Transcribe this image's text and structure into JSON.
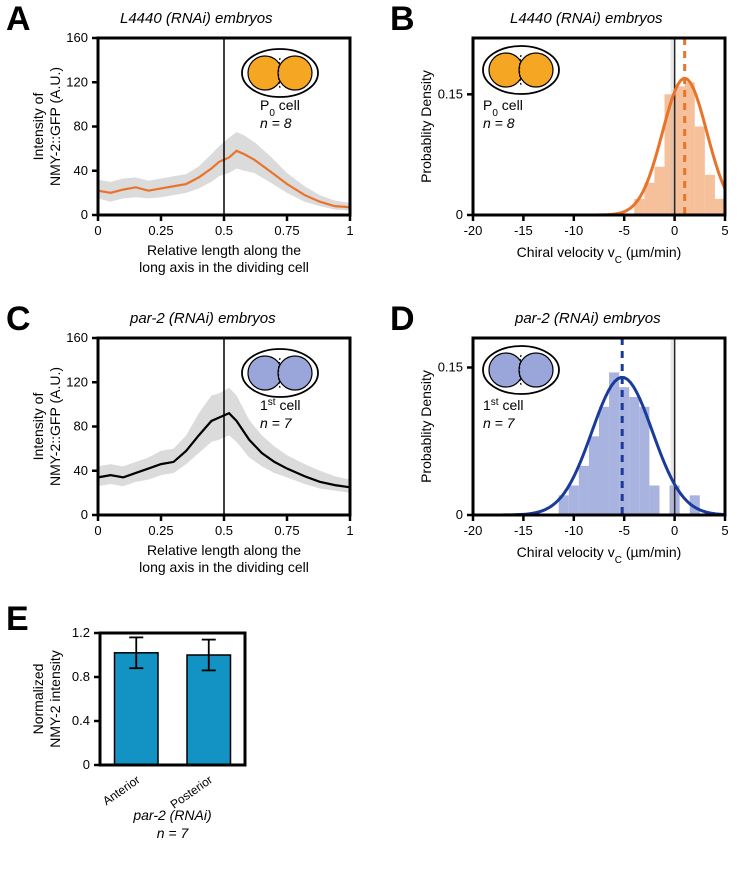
{
  "panelA": {
    "letter": "A",
    "title": "L4440 (RNAi) embryos",
    "ylabel_line1": "Intensity of",
    "ylabel_line2": "NMY-2::GFP (A.U.)",
    "xlabel_line1": "Relative length along the",
    "xlabel_line2": "long axis in the dividing cell",
    "xlim": [
      0,
      1
    ],
    "ylim": [
      0,
      160
    ],
    "xticks": [
      0,
      0.25,
      0.5,
      0.75,
      1
    ],
    "yticks": [
      0,
      40,
      80,
      120,
      160
    ],
    "vline_x": 0.5,
    "line_color": "#e8742c",
    "band_color": "#c8c8c8",
    "series": [
      {
        "x": 0.0,
        "y": 22,
        "lo": 15,
        "hi": 32
      },
      {
        "x": 0.05,
        "y": 20,
        "lo": 12,
        "hi": 30
      },
      {
        "x": 0.1,
        "y": 23,
        "lo": 15,
        "hi": 33
      },
      {
        "x": 0.15,
        "y": 25,
        "lo": 16,
        "hi": 34
      },
      {
        "x": 0.2,
        "y": 22,
        "lo": 15,
        "hi": 31
      },
      {
        "x": 0.25,
        "y": 24,
        "lo": 16,
        "hi": 33
      },
      {
        "x": 0.3,
        "y": 26,
        "lo": 18,
        "hi": 35
      },
      {
        "x": 0.35,
        "y": 28,
        "lo": 20,
        "hi": 37
      },
      {
        "x": 0.4,
        "y": 34,
        "lo": 24,
        "hi": 44
      },
      {
        "x": 0.45,
        "y": 42,
        "lo": 30,
        "hi": 55
      },
      {
        "x": 0.48,
        "y": 48,
        "lo": 35,
        "hi": 62
      },
      {
        "x": 0.52,
        "y": 52,
        "lo": 38,
        "hi": 70
      },
      {
        "x": 0.55,
        "y": 58,
        "lo": 42,
        "hi": 75
      },
      {
        "x": 0.58,
        "y": 55,
        "lo": 40,
        "hi": 72
      },
      {
        "x": 0.62,
        "y": 50,
        "lo": 38,
        "hi": 66
      },
      {
        "x": 0.68,
        "y": 40,
        "lo": 30,
        "hi": 54
      },
      {
        "x": 0.75,
        "y": 28,
        "lo": 20,
        "hi": 38
      },
      {
        "x": 0.82,
        "y": 18,
        "lo": 12,
        "hi": 26
      },
      {
        "x": 0.88,
        "y": 12,
        "lo": 8,
        "hi": 18
      },
      {
        "x": 0.94,
        "y": 8,
        "lo": 5,
        "hi": 13
      },
      {
        "x": 1.0,
        "y": 7,
        "lo": 4,
        "hi": 11
      }
    ],
    "inset_label_line1": "P",
    "inset_label_sub": "0",
    "inset_label_line2": " cell",
    "inset_n": "n = 8",
    "inset_cell_color": "#f5a623"
  },
  "panelB": {
    "letter": "B",
    "title": "L4440 (RNAi) embryos",
    "ylabel": "Probablity Density",
    "xlabel_pre": "Chiral velocity  v",
    "xlabel_sub": "C",
    "xlabel_unit": "(µm/min)",
    "xlim": [
      -20,
      5
    ],
    "ylim": [
      0,
      0.22
    ],
    "xticks": [
      -20,
      -15,
      -10,
      -5,
      0,
      5
    ],
    "yticks": [
      0,
      0.15
    ],
    "vline_x": 0,
    "hist_color": "#f4b58a",
    "curve_color": "#e8742c",
    "dash_color": "#e8742c",
    "grey_dash": "#c0c0c0",
    "hist": [
      {
        "x": -3.5,
        "w": 1,
        "h": 0.02
      },
      {
        "x": -2.5,
        "w": 1,
        "h": 0.04
      },
      {
        "x": -1.5,
        "w": 1,
        "h": 0.06
      },
      {
        "x": -0.5,
        "w": 1,
        "h": 0.15
      },
      {
        "x": 0.5,
        "w": 1,
        "h": 0.16
      },
      {
        "x": 1.5,
        "w": 1,
        "h": 0.165
      },
      {
        "x": 2.5,
        "w": 1,
        "h": 0.11
      },
      {
        "x": 3.5,
        "w": 1,
        "h": 0.05
      },
      {
        "x": 4.5,
        "w": 1,
        "h": 0.02
      }
    ],
    "mean": 1.0,
    "sd": 2.2,
    "peak": 0.17,
    "inset_label_line1": "P",
    "inset_label_sub": "0",
    "inset_label_line2": " cell",
    "inset_n": "n = 8",
    "inset_cell_color": "#f5a623"
  },
  "panelC": {
    "letter": "C",
    "title": "par-2 (RNAi) embryos",
    "ylabel_line1": "Intensity of",
    "ylabel_line2": "NMY-2::GFP (A.U.)",
    "xlabel_line1": "Relative length along the",
    "xlabel_line2": "long axis in the dividing cell",
    "xlim": [
      0,
      1
    ],
    "ylim": [
      0,
      160
    ],
    "xticks": [
      0,
      0.25,
      0.5,
      0.75,
      1
    ],
    "yticks": [
      0,
      40,
      80,
      120,
      160
    ],
    "vline_x": 0.5,
    "line_color": "#000000",
    "band_color": "#c8c8c8",
    "series": [
      {
        "x": 0.0,
        "y": 34,
        "lo": 26,
        "hi": 44
      },
      {
        "x": 0.05,
        "y": 36,
        "lo": 28,
        "hi": 46
      },
      {
        "x": 0.1,
        "y": 34,
        "lo": 26,
        "hi": 44
      },
      {
        "x": 0.15,
        "y": 38,
        "lo": 30,
        "hi": 48
      },
      {
        "x": 0.2,
        "y": 42,
        "lo": 32,
        "hi": 52
      },
      {
        "x": 0.25,
        "y": 46,
        "lo": 36,
        "hi": 58
      },
      {
        "x": 0.3,
        "y": 48,
        "lo": 38,
        "hi": 60
      },
      {
        "x": 0.35,
        "y": 58,
        "lo": 46,
        "hi": 72
      },
      {
        "x": 0.4,
        "y": 72,
        "lo": 56,
        "hi": 92
      },
      {
        "x": 0.45,
        "y": 85,
        "lo": 66,
        "hi": 108
      },
      {
        "x": 0.48,
        "y": 88,
        "lo": 68,
        "hi": 110
      },
      {
        "x": 0.52,
        "y": 92,
        "lo": 72,
        "hi": 115
      },
      {
        "x": 0.55,
        "y": 85,
        "lo": 66,
        "hi": 108
      },
      {
        "x": 0.6,
        "y": 68,
        "lo": 52,
        "hi": 86
      },
      {
        "x": 0.65,
        "y": 56,
        "lo": 44,
        "hi": 72
      },
      {
        "x": 0.7,
        "y": 48,
        "lo": 38,
        "hi": 62
      },
      {
        "x": 0.75,
        "y": 42,
        "lo": 34,
        "hi": 54
      },
      {
        "x": 0.82,
        "y": 35,
        "lo": 28,
        "hi": 46
      },
      {
        "x": 0.88,
        "y": 30,
        "lo": 24,
        "hi": 40
      },
      {
        "x": 0.94,
        "y": 27,
        "lo": 22,
        "hi": 35
      },
      {
        "x": 1.0,
        "y": 25,
        "lo": 20,
        "hi": 32
      }
    ],
    "inset_label_line1": "1",
    "inset_label_sup": "st",
    "inset_label_line2": " cell",
    "inset_n": "n = 7",
    "inset_cell_color": "#9aa6d9"
  },
  "panelD": {
    "letter": "D",
    "title": "par-2 (RNAi) embryos",
    "ylabel": "Probablity Density",
    "xlabel_pre": "Chiral velocity  v",
    "xlabel_sub": "C",
    "xlabel_unit": "(µm/min)",
    "xlim": [
      -20,
      5
    ],
    "ylim": [
      0,
      0.18
    ],
    "xticks": [
      -20,
      -15,
      -10,
      -5,
      0,
      5
    ],
    "yticks": [
      0,
      0.15
    ],
    "vline_x": 0,
    "hist_color": "#9aa6d9",
    "curve_color": "#1b3b9b",
    "dash_color": "#1b3b9b",
    "grey_dash": "#c0c0c0",
    "hist": [
      {
        "x": -11,
        "w": 1,
        "h": 0.02
      },
      {
        "x": -10,
        "w": 1,
        "h": 0.03
      },
      {
        "x": -9,
        "w": 1,
        "h": 0.05
      },
      {
        "x": -8,
        "w": 1,
        "h": 0.08
      },
      {
        "x": -7,
        "w": 1,
        "h": 0.11
      },
      {
        "x": -6,
        "w": 1,
        "h": 0.145
      },
      {
        "x": -5,
        "w": 1,
        "h": 0.13
      },
      {
        "x": -4,
        "w": 1,
        "h": 0.12
      },
      {
        "x": -3,
        "w": 1,
        "h": 0.11
      },
      {
        "x": -2,
        "w": 1,
        "h": 0.03
      },
      {
        "x": 0,
        "w": 1,
        "h": 0.03
      },
      {
        "x": 2,
        "w": 1,
        "h": 0.02
      }
    ],
    "mean": -5.2,
    "sd": 3.0,
    "peak": 0.14,
    "inset_label_line1": "1",
    "inset_label_sup": "st",
    "inset_label_line2": " cell",
    "inset_n": "n = 7",
    "inset_cell_color": "#9aa6d9"
  },
  "panelE": {
    "letter": "E",
    "ylabel_line1": "Normalized",
    "ylabel_line2": "NMY-2 intensity",
    "ylim": [
      0,
      1.2
    ],
    "yticks": [
      0,
      0.4,
      0.8,
      1.2
    ],
    "xticklabels": [
      "Anterior",
      "Posterior"
    ],
    "sub_title": "par-2 (RNAi)",
    "sub_n": "n = 7",
    "bar_color": "#1393c3",
    "bars": [
      {
        "label": "Anterior",
        "value": 1.02,
        "err": 0.14
      },
      {
        "label": "Posterior",
        "value": 1.0,
        "err": 0.14
      }
    ],
    "bar_width": 0.6
  }
}
